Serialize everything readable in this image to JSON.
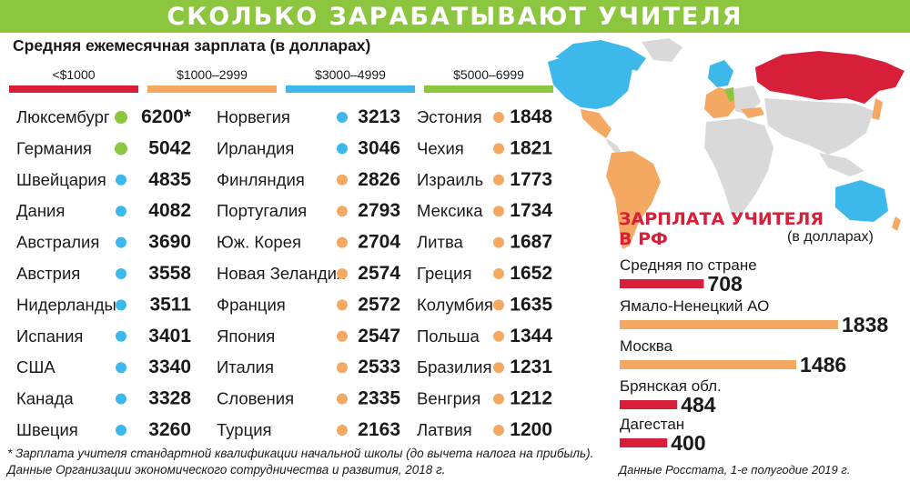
{
  "title": "СКОЛЬКО ЗАРАБАТЫВАЮТ УЧИТЕЛЯ",
  "subtitle": "Средняя ежемесячная зарплата (в долларах)",
  "colors": {
    "green": "#8cc63f",
    "red": "#d71f3a",
    "orange": "#f4a862",
    "blue": "#3db8ea",
    "map_gray": "#d9d9d9"
  },
  "legend": [
    {
      "label": "<$1000",
      "color": "red"
    },
    {
      "label": "$1000–2999",
      "color": "orange"
    },
    {
      "label": "$3000–4999",
      "color": "blue"
    },
    {
      "label": "$5000–6999",
      "color": "green"
    }
  ],
  "chart_data": [
    {
      "type": "table",
      "title": "Средняя ежемесячная зарплата (в долларах)",
      "columns": [
        [
          {
            "country": "Люксембург",
            "value": "6200*",
            "color": "green"
          },
          {
            "country": "Германия",
            "value": "5042",
            "color": "green"
          },
          {
            "country": "Швейцария",
            "value": "4835",
            "color": "blue"
          },
          {
            "country": "Дания",
            "value": "4082",
            "color": "blue"
          },
          {
            "country": "Австралия",
            "value": "3690",
            "color": "blue"
          },
          {
            "country": "Австрия",
            "value": "3558",
            "color": "blue"
          },
          {
            "country": "Нидерланды",
            "value": "3511",
            "color": "blue"
          },
          {
            "country": "Испания",
            "value": "3401",
            "color": "blue"
          },
          {
            "country": "США",
            "value": "3340",
            "color": "blue"
          },
          {
            "country": "Канада",
            "value": "3328",
            "color": "blue"
          },
          {
            "country": "Швеция",
            "value": "3260",
            "color": "blue"
          }
        ],
        [
          {
            "country": "Норвегия",
            "value": "3213",
            "color": "blue"
          },
          {
            "country": "Ирландия",
            "value": "3046",
            "color": "blue"
          },
          {
            "country": "Финляндия",
            "value": "2826",
            "color": "orange"
          },
          {
            "country": "Португалия",
            "value": "2793",
            "color": "orange"
          },
          {
            "country": "Юж. Корея",
            "value": "2704",
            "color": "orange"
          },
          {
            "country": "Новая Зеландия",
            "value": "2574",
            "color": "orange"
          },
          {
            "country": "Франция",
            "value": "2572",
            "color": "orange"
          },
          {
            "country": "Япония",
            "value": "2547",
            "color": "orange"
          },
          {
            "country": "Италия",
            "value": "2533",
            "color": "orange"
          },
          {
            "country": "Словения",
            "value": "2335",
            "color": "orange"
          },
          {
            "country": "Турция",
            "value": "2163",
            "color": "orange"
          }
        ],
        [
          {
            "country": "Эстония",
            "value": "1848",
            "color": "orange"
          },
          {
            "country": "Чехия",
            "value": "1821",
            "color": "orange"
          },
          {
            "country": "Израиль",
            "value": "1773",
            "color": "orange"
          },
          {
            "country": "Мексика",
            "value": "1734",
            "color": "orange"
          },
          {
            "country": "Литва",
            "value": "1687",
            "color": "orange"
          },
          {
            "country": "Греция",
            "value": "1652",
            "color": "orange"
          },
          {
            "country": "Колумбия",
            "value": "1635",
            "color": "orange"
          },
          {
            "country": "Польша",
            "value": "1344",
            "color": "orange"
          },
          {
            "country": "Бразилия",
            "value": "1231",
            "color": "orange"
          },
          {
            "country": "Венгрия",
            "value": "1212",
            "color": "orange"
          },
          {
            "country": "Латвия",
            "value": "1200",
            "color": "orange"
          }
        ]
      ]
    },
    {
      "type": "bar",
      "title": "ЗАРПЛАТА УЧИТЕЛЯ В РФ",
      "unit": "(в долларах)",
      "categories": [
        "Средняя по стране",
        "Ямало-Ненецкий АО",
        "Москва",
        "Брянская обл.",
        "Дагестан"
      ],
      "values": [
        708,
        1838,
        1486,
        484,
        400
      ],
      "colors": [
        "red",
        "orange",
        "orange",
        "red",
        "red"
      ],
      "xlim": [
        0,
        1838
      ]
    }
  ],
  "footnote_1": "* Зарплата учителя стандартной квалификации начальной школы (до вычета налога на прибыль).",
  "footnote_2": "Данные Организации экономического сотрудничества и развития, 2018 г.",
  "source_rf": "Данные Росстата, 1-е полугодие 2019 г."
}
